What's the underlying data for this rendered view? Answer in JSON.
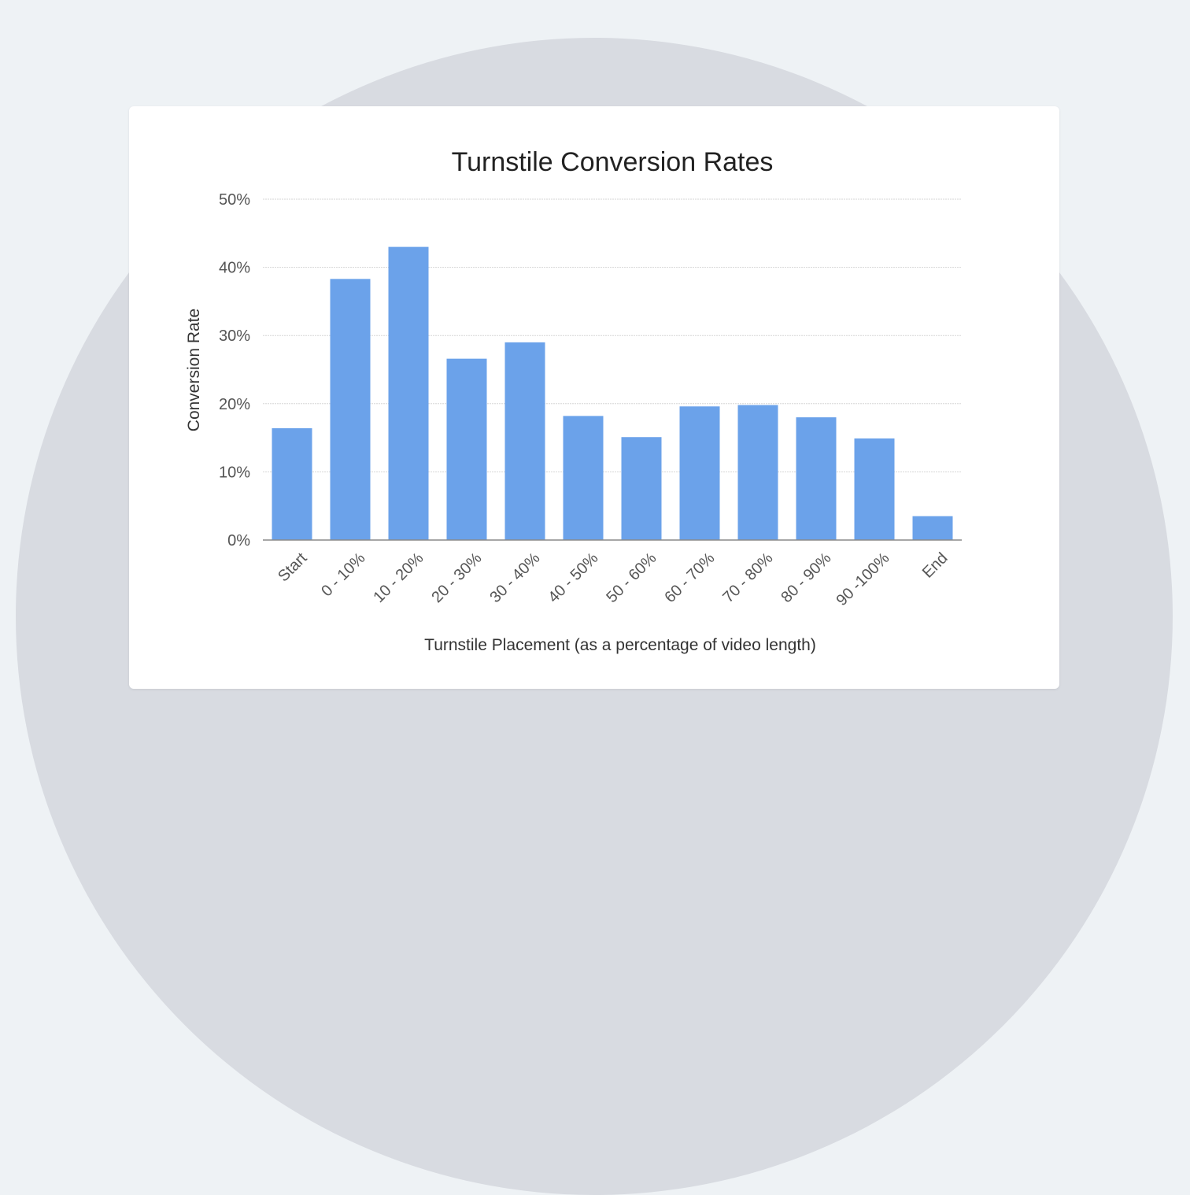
{
  "colors": {
    "bar": "#6ba2ea",
    "background": "#eef2f5",
    "circle": "#d8dbe1",
    "card": "#ffffff",
    "text": "#222222",
    "axis": "#555555",
    "grid": "#d6d6d6"
  },
  "chart_data": {
    "type": "bar",
    "title": "Turnstile Conversion Rates",
    "xlabel": "Turnstile Placement (as a percentage of video length)",
    "ylabel": "Conversion Rate",
    "ylim": [
      0,
      50
    ],
    "yticks": [
      0,
      10,
      20,
      30,
      40,
      50
    ],
    "ytick_labels": [
      "0%",
      "10%",
      "20%",
      "30%",
      "40%",
      "50%"
    ],
    "grid": true,
    "legend": "none",
    "categories": [
      "Start",
      "0 - 10%",
      "10 - 20%",
      "20 - 30%",
      "30 - 40%",
      "40 - 50%",
      "50 - 60%",
      "60 - 70%",
      "70 - 80%",
      "80 - 90%",
      "90 -100%",
      "End"
    ],
    "values": [
      16.4,
      38.3,
      43.0,
      26.6,
      29.0,
      18.2,
      15.1,
      19.6,
      19.8,
      18.0,
      14.9,
      3.5
    ]
  }
}
